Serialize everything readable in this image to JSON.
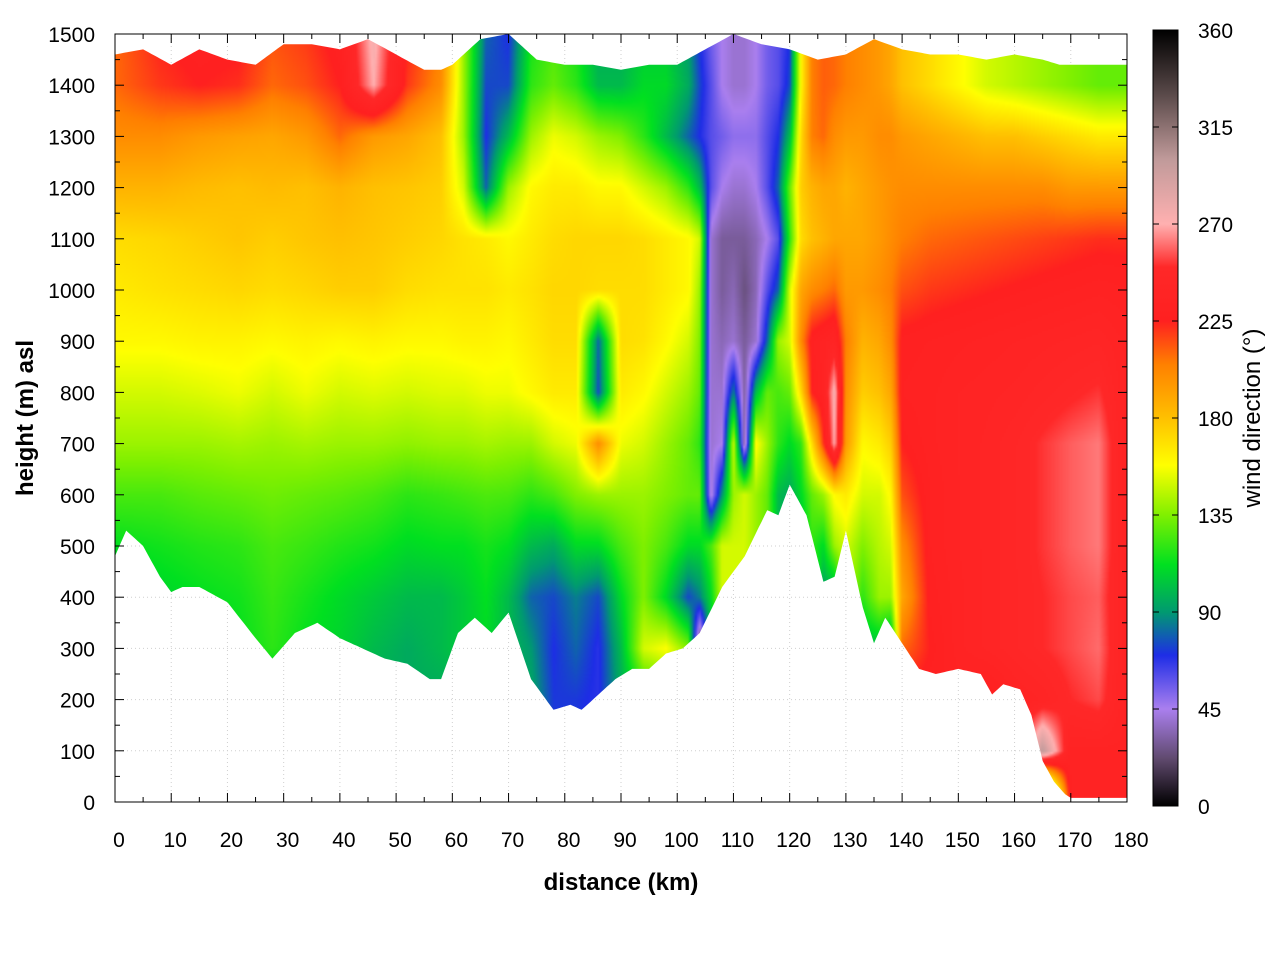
{
  "chart_data": {
    "type": "heatmap",
    "xlabel": "distance (km)",
    "ylabel": "height (m) asl",
    "colorbar_label": "wind direction (°)",
    "xlim": [
      0,
      180
    ],
    "ylim": [
      0,
      1500
    ],
    "zlim": [
      0,
      360
    ],
    "x_ticks": [
      "0",
      "10",
      "20",
      "30",
      "40",
      "50",
      "60",
      "70",
      "80",
      "90",
      "100",
      "110",
      "120",
      "130",
      "140",
      "150",
      "160",
      "170",
      "180"
    ],
    "y_ticks": [
      "0",
      "100",
      "200",
      "300",
      "400",
      "500",
      "600",
      "700",
      "800",
      "900",
      "1000",
      "1100",
      "1200",
      "1300",
      "1400",
      "1500"
    ],
    "colorbar_ticks": [
      "0",
      "45",
      "90",
      "135",
      "180",
      "225",
      "270",
      "315",
      "360"
    ],
    "grid": true,
    "colormap": [
      {
        "v": 0,
        "c": "#000000"
      },
      {
        "v": 22,
        "c": "#604a6e"
      },
      {
        "v": 45,
        "c": "#aa7fee"
      },
      {
        "v": 70,
        "c": "#1e2de6"
      },
      {
        "v": 90,
        "c": "#009a70"
      },
      {
        "v": 112,
        "c": "#00e020"
      },
      {
        "v": 135,
        "c": "#80f000"
      },
      {
        "v": 158,
        "c": "#ffff00"
      },
      {
        "v": 180,
        "c": "#ffc000"
      },
      {
        "v": 205,
        "c": "#ff8000"
      },
      {
        "v": 225,
        "c": "#ff2020"
      },
      {
        "v": 250,
        "c": "#ff2828"
      },
      {
        "v": 270,
        "c": "#ffb0b0"
      },
      {
        "v": 300,
        "c": "#c09a9a"
      },
      {
        "v": 330,
        "c": "#5a4a4a"
      },
      {
        "v": 360,
        "c": "#000000"
      }
    ],
    "terrain_height_m": {
      "x": [
        0,
        2,
        5,
        8,
        10,
        12,
        15,
        20,
        25,
        28,
        32,
        36,
        40,
        44,
        48,
        52,
        56,
        58,
        61,
        64,
        67,
        70,
        74,
        78,
        81,
        83,
        86,
        89,
        92,
        95,
        98,
        101,
        104,
        108,
        112,
        116,
        118,
        120,
        123,
        126,
        128,
        130,
        133,
        135,
        137,
        140,
        143,
        146,
        150,
        154,
        156,
        158,
        161,
        163,
        165,
        167,
        169,
        170,
        175,
        180
      ],
      "y": [
        480,
        530,
        500,
        440,
        410,
        420,
        420,
        390,
        320,
        280,
        330,
        350,
        320,
        300,
        280,
        270,
        240,
        240,
        330,
        360,
        330,
        370,
        240,
        180,
        190,
        180,
        210,
        240,
        260,
        260,
        290,
        300,
        330,
        420,
        480,
        570,
        560,
        620,
        560,
        430,
        440,
        530,
        380,
        310,
        360,
        310,
        260,
        250,
        260,
        250,
        210,
        230,
        220,
        170,
        80,
        40,
        15,
        8,
        8,
        8
      ]
    },
    "top_height_m": {
      "x": [
        0,
        5,
        10,
        15,
        20,
        25,
        30,
        35,
        40,
        45,
        50,
        55,
        58,
        60,
        65,
        70,
        75,
        80,
        85,
        90,
        95,
        100,
        105,
        110,
        115,
        120,
        125,
        130,
        135,
        140,
        145,
        150,
        155,
        160,
        165,
        168,
        170,
        180
      ],
      "y": [
        1460,
        1470,
        1440,
        1470,
        1450,
        1440,
        1480,
        1480,
        1470,
        1490,
        1460,
        1430,
        1430,
        1440,
        1490,
        1500,
        1450,
        1440,
        1440,
        1430,
        1440,
        1440,
        1470,
        1500,
        1480,
        1470,
        1450,
        1460,
        1490,
        1470,
        1460,
        1460,
        1450,
        1460,
        1450,
        1440,
        1440,
        1440
      ]
    },
    "wind_direction_deg": {
      "x": [
        0,
        8,
        15,
        22,
        28,
        34,
        40,
        46,
        52,
        58,
        62,
        66,
        70,
        74,
        78,
        82,
        86,
        90,
        94,
        98,
        102,
        104,
        106,
        108,
        110,
        112,
        114,
        116,
        118,
        120,
        122,
        124,
        126,
        128,
        130,
        133,
        136,
        138,
        140,
        145,
        150,
        155,
        160,
        165,
        170,
        175,
        180
      ],
      "y": [
        0,
        100,
        200,
        300,
        400,
        500,
        600,
        700,
        800,
        900,
        1000,
        1100,
        1200,
        1300,
        1400,
        1500
      ],
      "values": [
        [
          95,
          95,
          95,
          95,
          95,
          95,
          95,
          95,
          95,
          95,
          95,
          95,
          95,
          95,
          72,
          72,
          68,
          95,
          110,
          120,
          150,
          110,
          95,
          140,
          140,
          140,
          140,
          140,
          140,
          140,
          140,
          140,
          140,
          140,
          140,
          100,
          100,
          90,
          230,
          230,
          230,
          225,
          230,
          5,
          235,
          235,
          235
        ],
        [
          95,
          95,
          95,
          95,
          95,
          95,
          95,
          95,
          95,
          95,
          95,
          95,
          95,
          95,
          72,
          72,
          68,
          95,
          110,
          120,
          150,
          110,
          95,
          140,
          140,
          140,
          140,
          140,
          140,
          140,
          140,
          140,
          140,
          140,
          140,
          100,
          100,
          90,
          230,
          230,
          230,
          225,
          230,
          300,
          235,
          235,
          235
        ],
        [
          95,
          95,
          95,
          95,
          95,
          95,
          95,
          95,
          95,
          95,
          95,
          95,
          95,
          95,
          72,
          72,
          68,
          95,
          110,
          120,
          150,
          110,
          95,
          140,
          140,
          140,
          140,
          140,
          140,
          140,
          140,
          140,
          140,
          140,
          140,
          100,
          100,
          90,
          230,
          230,
          230,
          225,
          235,
          240,
          250,
          255,
          235
        ],
        [
          100,
          100,
          105,
          112,
          120,
          112,
          108,
          100,
          95,
          100,
          105,
          110,
          100,
          90,
          70,
          80,
          68,
          100,
          150,
          158,
          135,
          12,
          100,
          140,
          140,
          140,
          140,
          140,
          140,
          140,
          140,
          140,
          140,
          140,
          140,
          100,
          100,
          90,
          210,
          225,
          235,
          240,
          245,
          250,
          255,
          260,
          235
        ],
        [
          105,
          108,
          112,
          115,
          122,
          116,
          110,
          105,
          100,
          100,
          105,
          112,
          100,
          80,
          75,
          85,
          75,
          110,
          135,
          110,
          75,
          85,
          110,
          150,
          150,
          150,
          150,
          150,
          150,
          150,
          140,
          140,
          90,
          90,
          150,
          120,
          140,
          140,
          190,
          228,
          235,
          240,
          245,
          250,
          255,
          258,
          235
        ],
        [
          112,
          115,
          118,
          120,
          125,
          122,
          118,
          115,
          110,
          112,
          112,
          116,
          112,
          100,
          95,
          110,
          110,
          125,
          135,
          125,
          110,
          110,
          125,
          150,
          150,
          150,
          140,
          130,
          100,
          85,
          100,
          120,
          110,
          140,
          150,
          135,
          145,
          150,
          200,
          230,
          236,
          240,
          245,
          252,
          258,
          262,
          235
        ],
        [
          125,
          125,
          128,
          130,
          132,
          130,
          128,
          125,
          120,
          122,
          124,
          126,
          125,
          120,
          125,
          135,
          140,
          140,
          140,
          135,
          130,
          130,
          40,
          90,
          140,
          150,
          140,
          130,
          100,
          95,
          110,
          130,
          140,
          160,
          165,
          150,
          150,
          160,
          215,
          230,
          236,
          240,
          245,
          252,
          258,
          262,
          235
        ],
        [
          140,
          140,
          140,
          142,
          140,
          142,
          140,
          140,
          138,
          140,
          140,
          142,
          140,
          140,
          150,
          155,
          200,
          155,
          150,
          140,
          130,
          120,
          40,
          45,
          150,
          30,
          160,
          140,
          120,
          110,
          120,
          170,
          220,
          270,
          195,
          160,
          165,
          175,
          225,
          232,
          236,
          240,
          245,
          252,
          258,
          262,
          235
        ],
        [
          150,
          150,
          152,
          155,
          150,
          155,
          150,
          152,
          150,
          152,
          152,
          155,
          155,
          160,
          165,
          165,
          75,
          165,
          160,
          150,
          140,
          130,
          40,
          40,
          85,
          30,
          100,
          130,
          125,
          130,
          170,
          225,
          235,
          275,
          200,
          175,
          180,
          190,
          230,
          232,
          236,
          238,
          240,
          244,
          248,
          252,
          235
        ],
        [
          160,
          160,
          162,
          162,
          160,
          162,
          160,
          162,
          160,
          160,
          162,
          162,
          160,
          165,
          170,
          170,
          80,
          170,
          168,
          160,
          150,
          135,
          40,
          35,
          40,
          30,
          40,
          80,
          140,
          150,
          200,
          230,
          235,
          240,
          205,
          185,
          190,
          200,
          228,
          230,
          232,
          234,
          236,
          238,
          240,
          242,
          235
        ],
        [
          165,
          168,
          170,
          172,
          170,
          172,
          175,
          175,
          170,
          168,
          168,
          168,
          165,
          168,
          172,
          172,
          170,
          170,
          170,
          165,
          160,
          140,
          40,
          30,
          35,
          25,
          35,
          60,
          80,
          150,
          190,
          200,
          205,
          210,
          195,
          195,
          200,
          205,
          215,
          220,
          222,
          224,
          226,
          228,
          230,
          232,
          230
        ],
        [
          170,
          172,
          175,
          178,
          175,
          178,
          180,
          178,
          175,
          172,
          168,
          165,
          160,
          165,
          170,
          172,
          172,
          172,
          170,
          165,
          160,
          150,
          40,
          30,
          30,
          30,
          35,
          45,
          60,
          120,
          170,
          180,
          185,
          190,
          190,
          190,
          195,
          200,
          205,
          210,
          212,
          214,
          216,
          218,
          220,
          222,
          222
        ],
        [
          185,
          185,
          182,
          180,
          182,
          180,
          185,
          180,
          178,
          175,
          150,
          80,
          140,
          160,
          165,
          165,
          160,
          160,
          150,
          140,
          120,
          100,
          60,
          45,
          40,
          40,
          45,
          60,
          80,
          130,
          175,
          185,
          190,
          190,
          185,
          190,
          195,
          198,
          200,
          200,
          200,
          200,
          200,
          200,
          195,
          195,
          195
        ],
        [
          200,
          200,
          195,
          192,
          190,
          195,
          210,
          195,
          190,
          180,
          140,
          70,
          100,
          140,
          155,
          150,
          140,
          135,
          120,
          100,
          80,
          70,
          60,
          55,
          50,
          50,
          50,
          60,
          70,
          100,
          170,
          205,
          210,
          200,
          195,
          195,
          200,
          200,
          195,
          190,
          185,
          180,
          180,
          175,
          170,
          165,
          165
        ],
        [
          210,
          220,
          225,
          222,
          210,
          215,
          225,
          270,
          220,
          200,
          140,
          75,
          75,
          120,
          130,
          120,
          100,
          100,
          110,
          110,
          95,
          75,
          60,
          45,
          40,
          40,
          45,
          55,
          60,
          75,
          160,
          205,
          212,
          210,
          205,
          200,
          195,
          190,
          180,
          170,
          160,
          150,
          145,
          140,
          135,
          130,
          130
        ],
        [
          210,
          225,
          230,
          228,
          215,
          220,
          230,
          275,
          225,
          205,
          140,
          80,
          70,
          115,
          125,
          115,
          95,
          95,
          105,
          105,
          90,
          70,
          55,
          45,
          40,
          40,
          45,
          55,
          60,
          70,
          160,
          205,
          212,
          210,
          205,
          200,
          195,
          190,
          180,
          170,
          160,
          150,
          145,
          140,
          135,
          130,
          130
        ]
      ]
    }
  }
}
